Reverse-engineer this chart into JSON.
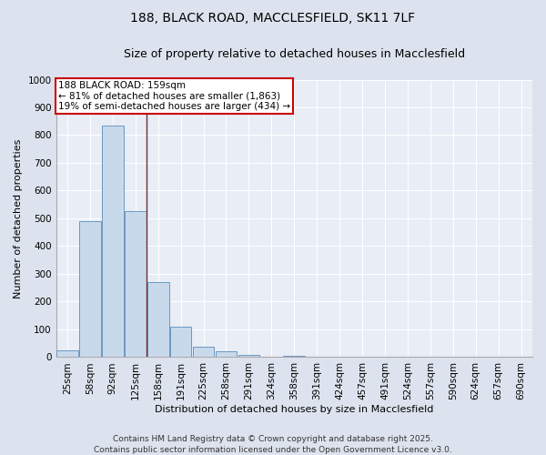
{
  "title_line1": "188, BLACK ROAD, MACCLESFIELD, SK11 7LF",
  "title_line2": "Size of property relative to detached houses in Macclesfield",
  "xlabel": "Distribution of detached houses by size in Macclesfield",
  "ylabel": "Number of detached properties",
  "categories": [
    "25sqm",
    "58sqm",
    "92sqm",
    "125sqm",
    "158sqm",
    "191sqm",
    "225sqm",
    "258sqm",
    "291sqm",
    "324sqm",
    "358sqm",
    "391sqm",
    "424sqm",
    "457sqm",
    "491sqm",
    "524sqm",
    "557sqm",
    "590sqm",
    "624sqm",
    "657sqm",
    "690sqm"
  ],
  "values": [
    25,
    490,
    835,
    525,
    270,
    110,
    37,
    20,
    8,
    0,
    5,
    0,
    0,
    0,
    0,
    0,
    0,
    0,
    0,
    0,
    0
  ],
  "bar_color": "#c8d9ec",
  "bar_edge_color": "#5b8db8",
  "vline_x_idx": 3.5,
  "vline_color": "#6e3030",
  "annotation_text": "188 BLACK ROAD: 159sqm\n← 81% of detached houses are smaller (1,863)\n19% of semi-detached houses are larger (434) →",
  "annotation_box_color": "#ffffff",
  "annotation_box_edge": "#cc0000",
  "ylim": [
    0,
    1000
  ],
  "yticks": [
    0,
    100,
    200,
    300,
    400,
    500,
    600,
    700,
    800,
    900,
    1000
  ],
  "bg_color": "#dde3ee",
  "plot_bg_color": "#e8edf6",
  "grid_color": "#ffffff",
  "footer": "Contains HM Land Registry data © Crown copyright and database right 2025.\nContains public sector information licensed under the Open Government Licence v3.0.",
  "title_fontsize": 10,
  "subtitle_fontsize": 9,
  "label_fontsize": 8,
  "tick_fontsize": 7.5,
  "footer_fontsize": 6.5,
  "annot_fontsize": 7.5
}
